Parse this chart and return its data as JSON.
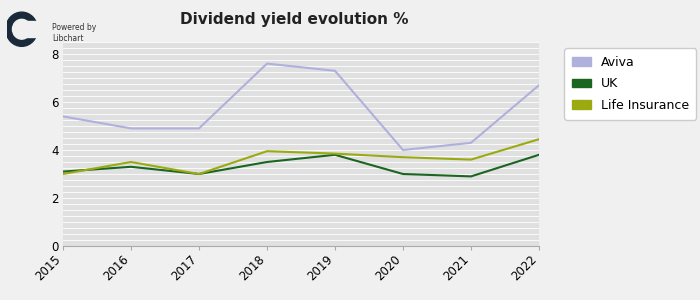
{
  "title": "Dividend yield evolution %",
  "years": [
    2015,
    2016,
    2017,
    2018,
    2019,
    2020,
    2021,
    2022
  ],
  "aviva": [
    5.4,
    4.9,
    4.9,
    7.6,
    7.3,
    4.0,
    4.3,
    6.7
  ],
  "uk": [
    3.1,
    3.3,
    3.0,
    3.5,
    3.8,
    3.0,
    2.9,
    3.8
  ],
  "life_insurance": [
    3.0,
    3.5,
    3.0,
    3.95,
    3.85,
    3.7,
    3.6,
    4.45
  ],
  "aviva_color": "#b0b0dd",
  "uk_color": "#1a6620",
  "life_insurance_color": "#9aaa10",
  "bg_color": "#f0f0f0",
  "plot_bg_color": "#e0e0e0",
  "stripe_color": "#ffffff",
  "ylim": [
    0,
    8.5
  ],
  "yticks": [
    0,
    2,
    4,
    6,
    8
  ],
  "legend_labels": [
    "Aviva",
    "UK",
    "Life Insurance"
  ],
  "title_fontsize": 11,
  "tick_fontsize": 8.5,
  "legend_fontsize": 9
}
